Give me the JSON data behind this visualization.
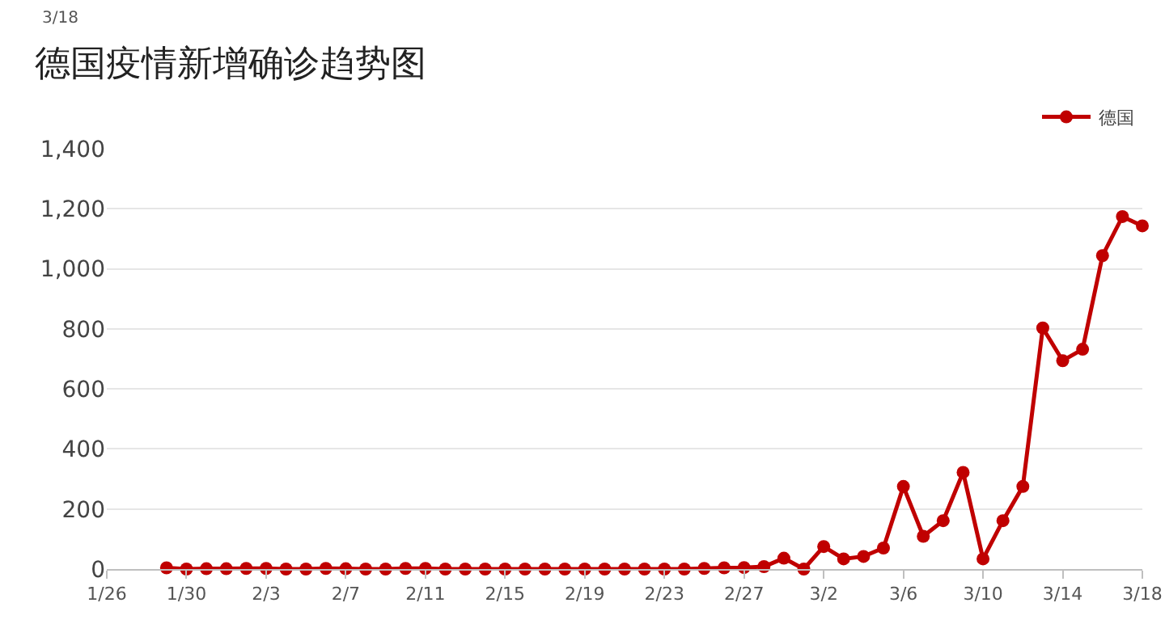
{
  "chart_data": {
    "type": "line",
    "title": "德国疫情新增确诊趋势图",
    "annotations": [
      "3/18"
    ],
    "x": [
      "--01-29",
      "--01-30",
      "--01-31",
      "--02-01",
      "--02-02",
      "--02-03",
      "--02-04",
      "--02-05",
      "--02-06",
      "--02-07",
      "--02-08",
      "--02-09",
      "--02-10",
      "--02-11",
      "--02-12",
      "--02-13",
      "--02-14",
      "--02-15",
      "--02-16",
      "--02-17",
      "--02-18",
      "--02-19",
      "--02-20",
      "--02-21",
      "--02-22",
      "--02-23",
      "--02-24",
      "--02-25",
      "--02-26",
      "--02-27",
      "--02-28",
      "--02-29",
      "--03-01",
      "--03-02",
      "--03-03",
      "--03-04",
      "--03-05",
      "--03-06",
      "--03-07",
      "--03-08",
      "--03-09",
      "--03-10",
      "--03-11",
      "--03-12",
      "--03-13",
      "--03-14",
      "--03-15",
      "--03-16",
      "--03-17",
      "--03-18"
    ],
    "series": [
      {
        "name": "德国",
        "color": "#c00000",
        "values": [
          4,
          0,
          1,
          1,
          2,
          2,
          0,
          0,
          2,
          1,
          0,
          0,
          2,
          2,
          0,
          0,
          0,
          0,
          0,
          0,
          0,
          0,
          0,
          0,
          0,
          0,
          0,
          2,
          4,
          5,
          8,
          36,
          0,
          75,
          34,
          42,
          70,
          275,
          109,
          161,
          322,
          34,
          161,
          275,
          803,
          694,
          732,
          1044,
          1174,
          1143
        ]
      }
    ],
    "xlim": [
      "--01-26",
      "--03-18"
    ],
    "xticks": [
      {
        "value": "--01-26",
        "label": "1/26"
      },
      {
        "value": "--01-30",
        "label": "1/30"
      },
      {
        "value": "--02-03",
        "label": "2/3"
      },
      {
        "value": "--02-07",
        "label": "2/7"
      },
      {
        "value": "--02-11",
        "label": "2/11"
      },
      {
        "value": "--02-15",
        "label": "2/15"
      },
      {
        "value": "--02-19",
        "label": "2/19"
      },
      {
        "value": "--02-23",
        "label": "2/23"
      },
      {
        "value": "--02-27",
        "label": "2/27"
      },
      {
        "value": "--03-02",
        "label": "3/2"
      },
      {
        "value": "--03-06",
        "label": "3/6"
      },
      {
        "value": "--03-10",
        "label": "3/10"
      },
      {
        "value": "--03-14",
        "label": "3/14"
      },
      {
        "value": "--03-18",
        "label": "3/18"
      }
    ],
    "ylim": [
      0,
      1400
    ],
    "yticks": [
      0,
      200,
      400,
      600,
      800,
      {
        "value": 1000,
        "label": "1,000"
      },
      {
        "value": 1200,
        "label": "1,200"
      },
      {
        "value": 1400,
        "label": "1,400"
      }
    ],
    "grid": "y",
    "legend": "top right",
    "marker": "circle",
    "line_style": "solid"
  }
}
